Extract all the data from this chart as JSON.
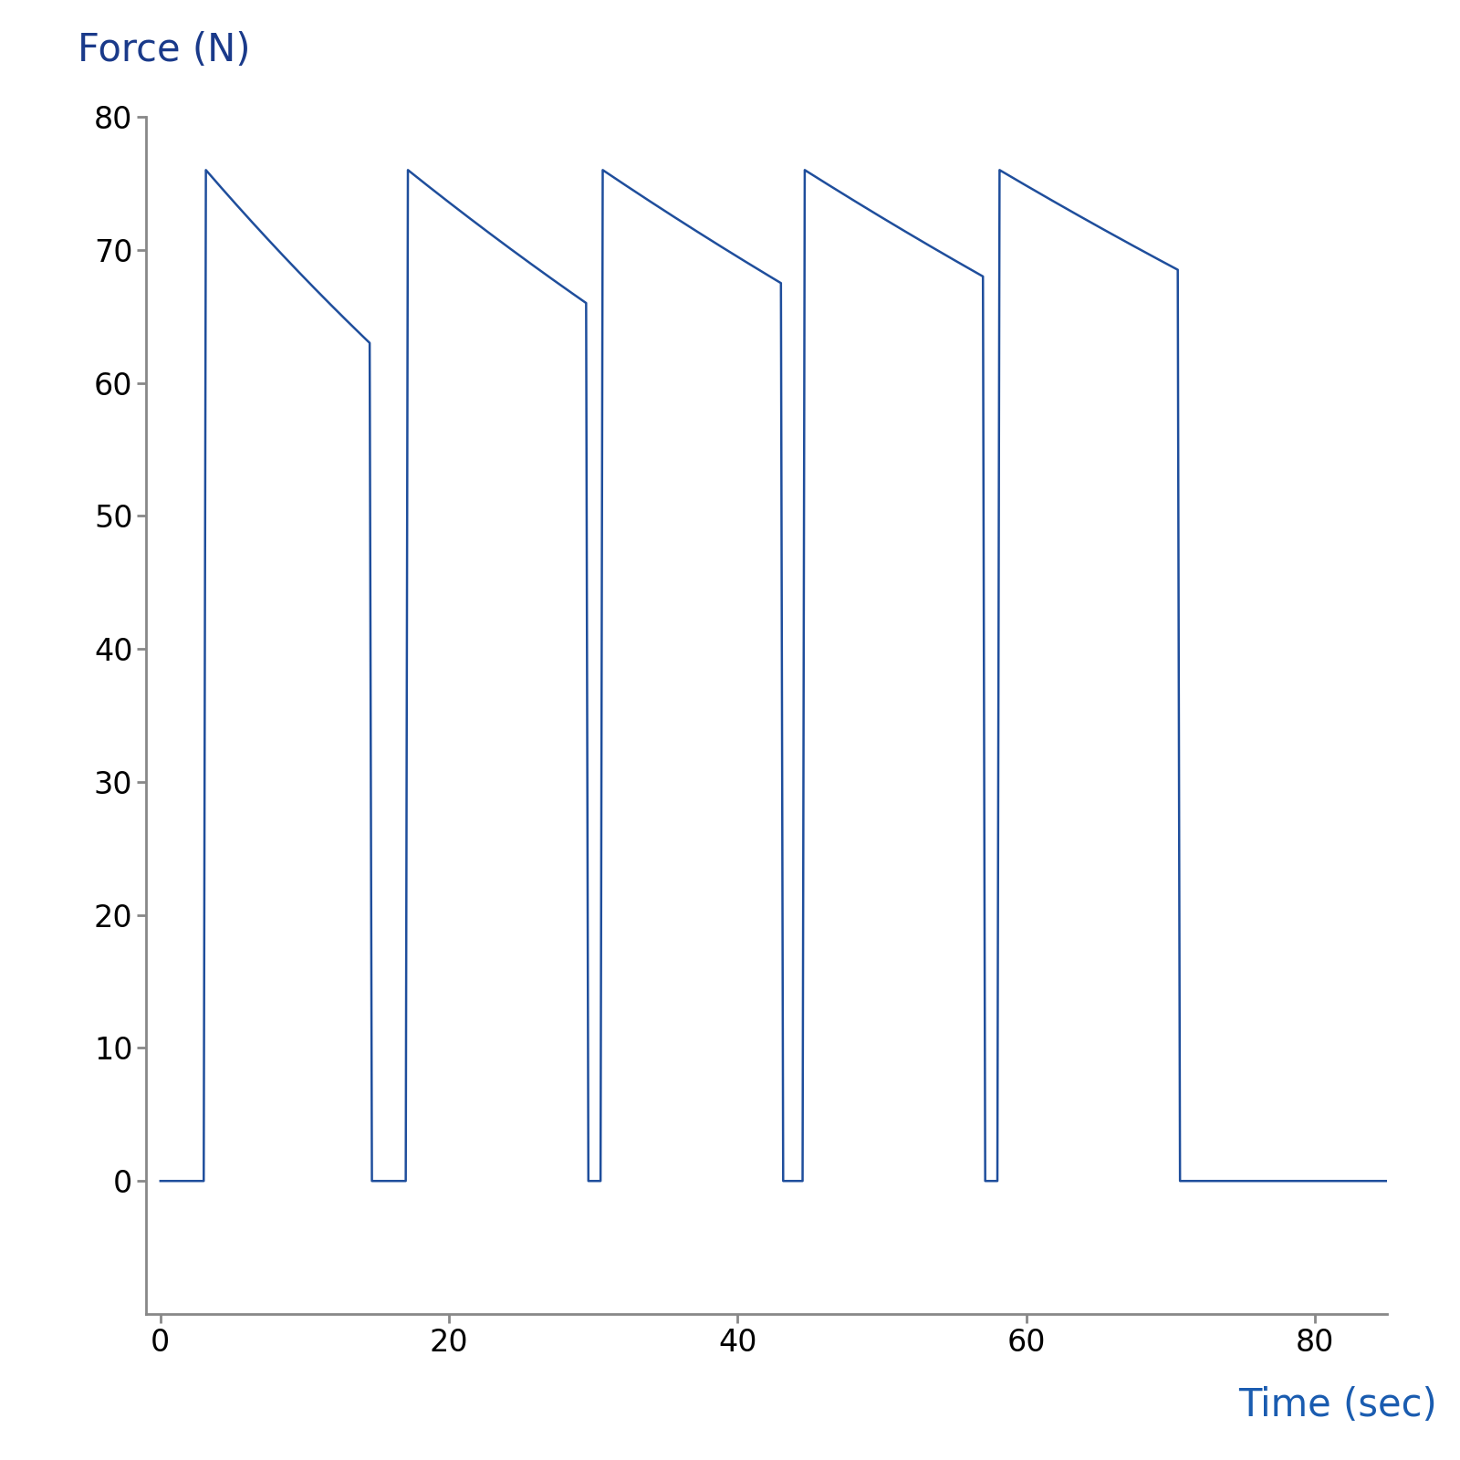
{
  "title_ylabel": "Force (N)",
  "title_xlabel": "Time (sec)",
  "ylabel_color": "#1a3a8a",
  "xlabel_color": "#1a5cb0",
  "line_color": "#1f4e9c",
  "line_width": 1.8,
  "xlim": [
    -1,
    85
  ],
  "ylim": [
    -10,
    80
  ],
  "yticks": [
    0,
    10,
    20,
    30,
    40,
    50,
    60,
    70,
    80
  ],
  "xticks": [
    0,
    20,
    40,
    60,
    80
  ],
  "background_color": "#ffffff",
  "spine_color": "#888888",
  "tick_color": "#000000",
  "num_cycles": 5,
  "cycle_starts": [
    3.0,
    17.0,
    30.5,
    44.5,
    58.0
  ],
  "cycle_durations": [
    11.5,
    12.5,
    12.5,
    12.5,
    12.5
  ],
  "peak_force": 76.0,
  "end_forces": [
    63.0,
    66.0,
    67.5,
    68.0,
    68.5
  ],
  "rise_time": 0.15,
  "drop_time": 0.15,
  "figsize": [
    16.0,
    16.0
  ],
  "dpi": 100
}
